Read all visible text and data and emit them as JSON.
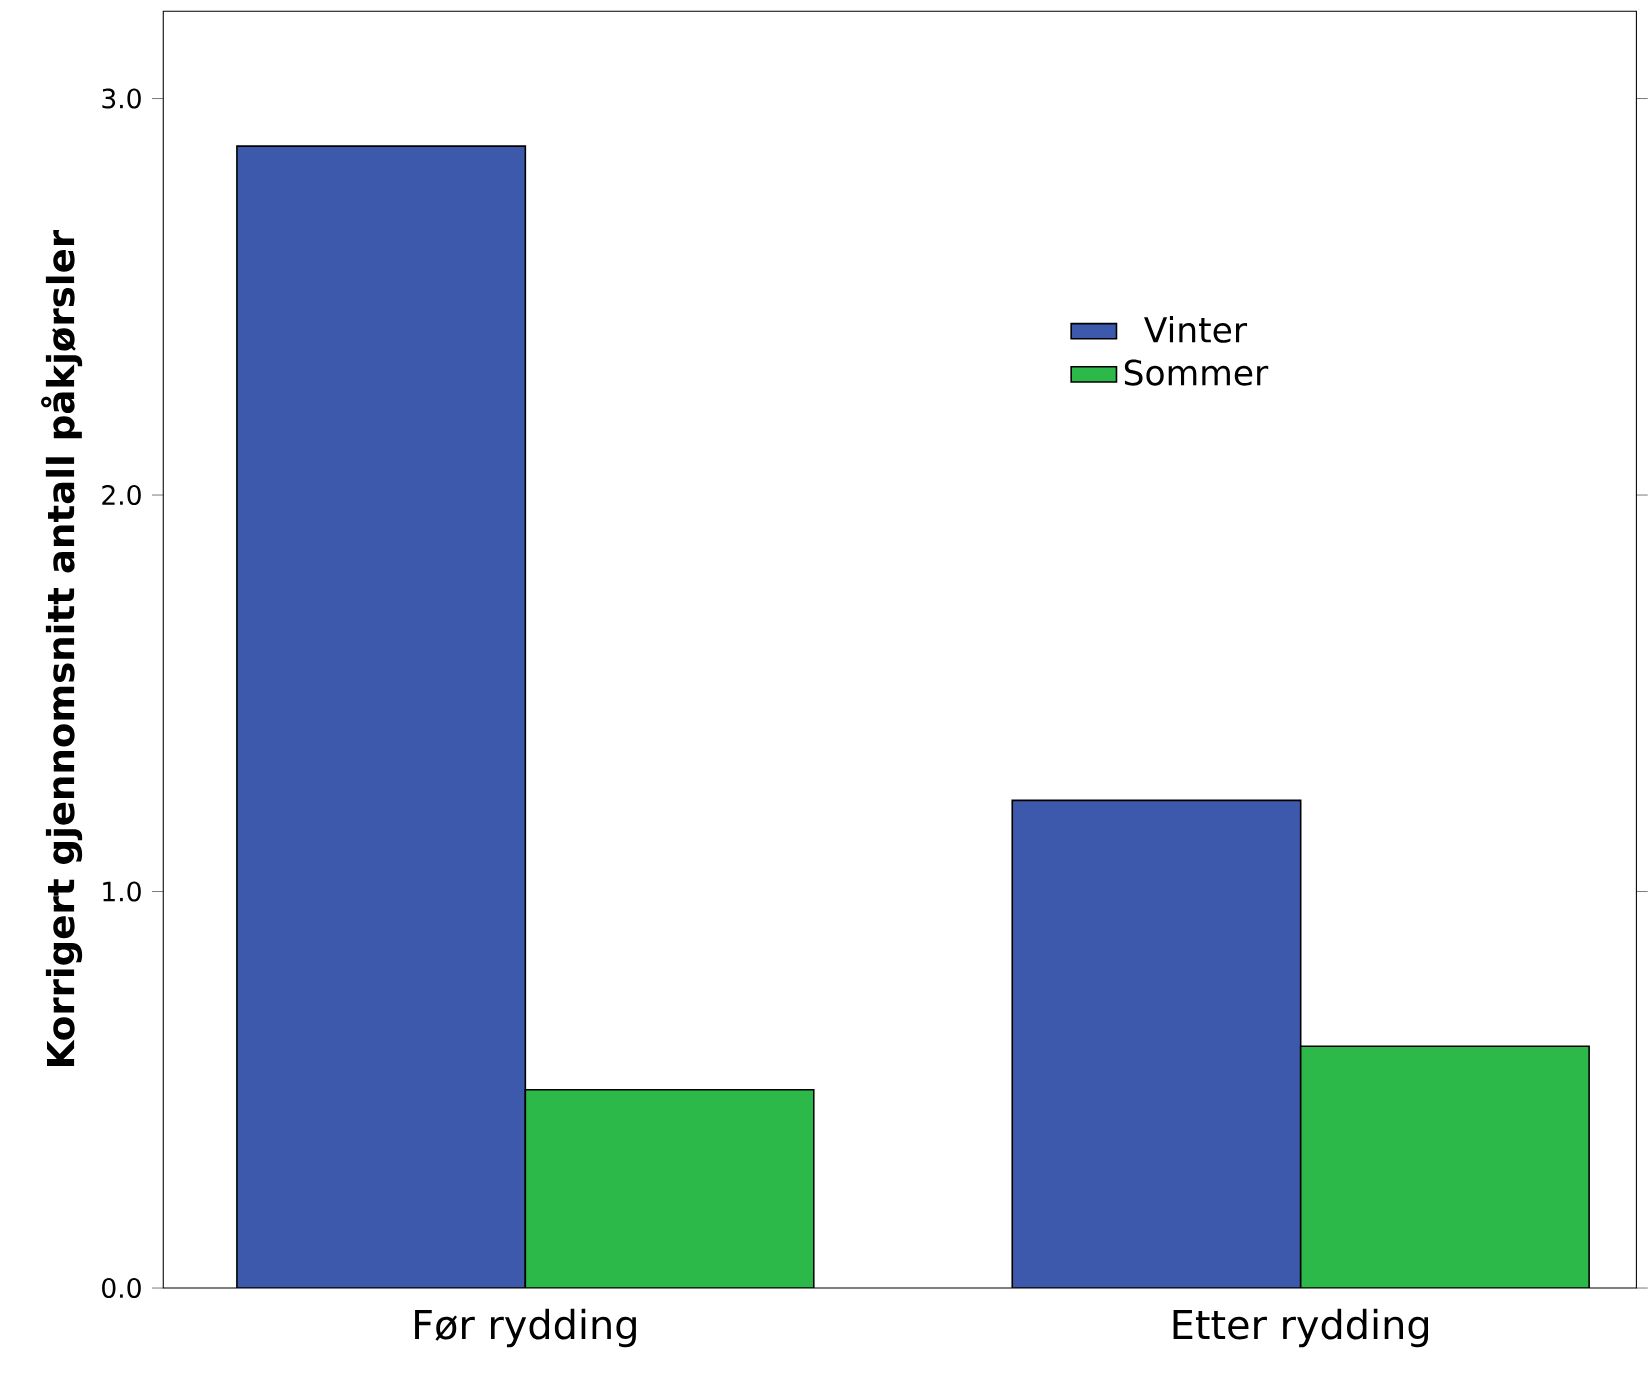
{
  "chart_data": {
    "type": "bar",
    "ylabel": "Korrigert gjennomsnitt antall påkjørsler",
    "categories": [
      "Før rydding",
      "Etter rydding"
    ],
    "series": [
      {
        "name": "Vinter",
        "color": "#3d59ab",
        "values": [
          2.88,
          1.23
        ]
      },
      {
        "name": "Sommer",
        "color": "#2db84a",
        "values": [
          0.5,
          0.61
        ]
      }
    ],
    "ylim": [
      0,
      3.22
    ],
    "yticks": [
      {
        "value": 0,
        "label": "0.0"
      },
      {
        "value": 1,
        "label": "1.0"
      },
      {
        "value": 2,
        "label": "2.0"
      },
      {
        "value": 3,
        "label": "3.0"
      }
    ],
    "grid": false,
    "legend": "top right"
  }
}
